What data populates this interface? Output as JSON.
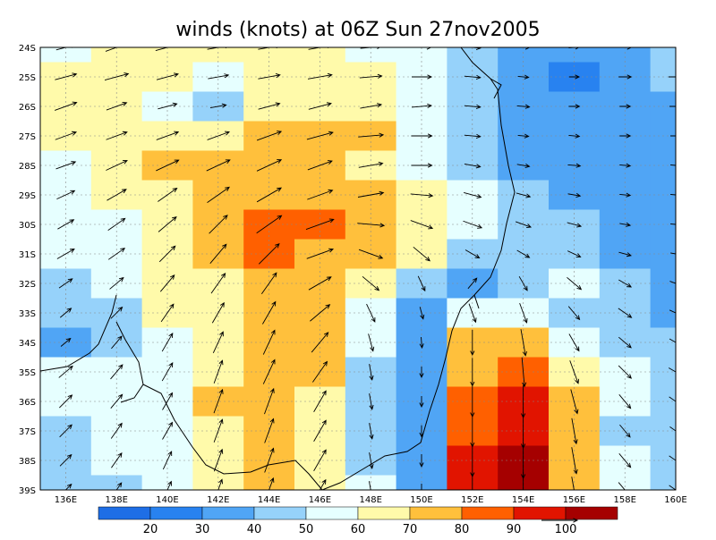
{
  "title": "winds (knots) at 06Z Sun 27nov2005",
  "lat_labels": [
    "24S",
    "25S",
    "26S",
    "27S",
    "28S",
    "29S",
    "30S",
    "31S",
    "32S",
    "33S",
    "34S",
    "35S",
    "36S",
    "37S",
    "38S",
    "39S"
  ],
  "lon_labels": [
    "136E",
    "138E",
    "140E",
    "142E",
    "144E",
    "146E",
    "148E",
    "150E",
    "152E",
    "154E",
    "156E",
    "158E",
    "160E"
  ],
  "wind_field": {
    "speed": [
      [
        55,
        65,
        68,
        62,
        62,
        65,
        58,
        52,
        45,
        35,
        30,
        35,
        45
      ],
      [
        62,
        68,
        62,
        58,
        62,
        68,
        62,
        55,
        45,
        30,
        28,
        35,
        40
      ],
      [
        65,
        60,
        55,
        45,
        62,
        65,
        60,
        55,
        45,
        35,
        30,
        30,
        35
      ],
      [
        62,
        62,
        65,
        65,
        72,
        75,
        70,
        58,
        45,
        30,
        30,
        30,
        30
      ],
      [
        58,
        65,
        70,
        72,
        75,
        72,
        68,
        58,
        45,
        35,
        35,
        30,
        30
      ],
      [
        55,
        62,
        65,
        75,
        78,
        75,
        72,
        62,
        50,
        40,
        35,
        30,
        30
      ],
      [
        52,
        58,
        65,
        72,
        85,
        82,
        75,
        65,
        55,
        45,
        40,
        30,
        30
      ],
      [
        55,
        55,
        62,
        70,
        80,
        78,
        70,
        60,
        45,
        40,
        40,
        35,
        30
      ],
      [
        45,
        50,
        60,
        68,
        72,
        72,
        60,
        45,
        38,
        45,
        52,
        40,
        35
      ],
      [
        40,
        45,
        60,
        65,
        72,
        72,
        55,
        35,
        55,
        58,
        48,
        45,
        38
      ],
      [
        35,
        45,
        58,
        65,
        75,
        72,
        50,
        30,
        70,
        75,
        55,
        45,
        40
      ],
      [
        50,
        52,
        58,
        68,
        75,
        70,
        45,
        30,
        78,
        82,
        68,
        50,
        45
      ],
      [
        50,
        50,
        55,
        70,
        75,
        68,
        45,
        30,
        85,
        90,
        70,
        50,
        45
      ],
      [
        48,
        52,
        55,
        68,
        72,
        68,
        45,
        32,
        88,
        95,
        72,
        45,
        40
      ],
      [
        45,
        50,
        55,
        65,
        72,
        68,
        45,
        35,
        90,
        100,
        75,
        50,
        45
      ],
      [
        45,
        48,
        52,
        62,
        70,
        65,
        50,
        35,
        92,
        100,
        75,
        55,
        45
      ]
    ],
    "direction": [
      [
        75,
        70,
        75,
        80,
        80,
        80,
        85,
        90,
        95,
        90,
        85,
        90,
        90
      ],
      [
        75,
        75,
        75,
        80,
        80,
        80,
        85,
        90,
        95,
        95,
        90,
        90,
        90
      ],
      [
        70,
        70,
        75,
        80,
        75,
        75,
        80,
        85,
        95,
        95,
        90,
        90,
        90
      ],
      [
        70,
        70,
        70,
        70,
        70,
        75,
        85,
        90,
        95,
        95,
        95,
        90,
        90
      ],
      [
        70,
        65,
        65,
        65,
        65,
        70,
        80,
        90,
        100,
        100,
        95,
        95,
        95
      ],
      [
        65,
        60,
        55,
        55,
        60,
        70,
        80,
        95,
        105,
        105,
        100,
        95,
        95
      ],
      [
        60,
        55,
        50,
        45,
        55,
        70,
        95,
        110,
        110,
        110,
        105,
        100,
        95
      ],
      [
        60,
        55,
        45,
        40,
        45,
        70,
        110,
        130,
        120,
        120,
        115,
        105,
        100
      ],
      [
        55,
        50,
        40,
        35,
        35,
        60,
        130,
        155,
        40,
        150,
        130,
        120,
        110
      ],
      [
        50,
        45,
        35,
        30,
        30,
        50,
        155,
        165,
        160,
        160,
        140,
        125,
        115
      ],
      [
        50,
        40,
        30,
        25,
        25,
        40,
        165,
        175,
        180,
        170,
        150,
        130,
        120
      ],
      [
        50,
        40,
        30,
        20,
        25,
        35,
        170,
        180,
        180,
        175,
        160,
        135,
        120
      ],
      [
        45,
        40,
        30,
        20,
        20,
        30,
        170,
        180,
        180,
        180,
        165,
        140,
        125
      ],
      [
        45,
        35,
        30,
        20,
        20,
        30,
        170,
        180,
        180,
        180,
        170,
        140,
        125
      ],
      [
        45,
        35,
        25,
        20,
        20,
        30,
        170,
        180,
        180,
        180,
        170,
        140,
        125
      ],
      [
        45,
        35,
        25,
        20,
        20,
        30,
        170,
        180,
        180,
        180,
        170,
        140,
        125
      ]
    ]
  },
  "colorbar": {
    "levels": [
      20,
      30,
      40,
      50,
      60,
      70,
      80,
      90,
      100
    ],
    "colors": [
      "#1e6ee6",
      "#2882f0",
      "#50a5f5",
      "#96d2fa",
      "#e6ffff",
      "#fffaaa",
      "#ffc03c",
      "#ff6000",
      "#e11400",
      "#a50000"
    ]
  },
  "reference_vector": {
    "knots": 100
  }
}
